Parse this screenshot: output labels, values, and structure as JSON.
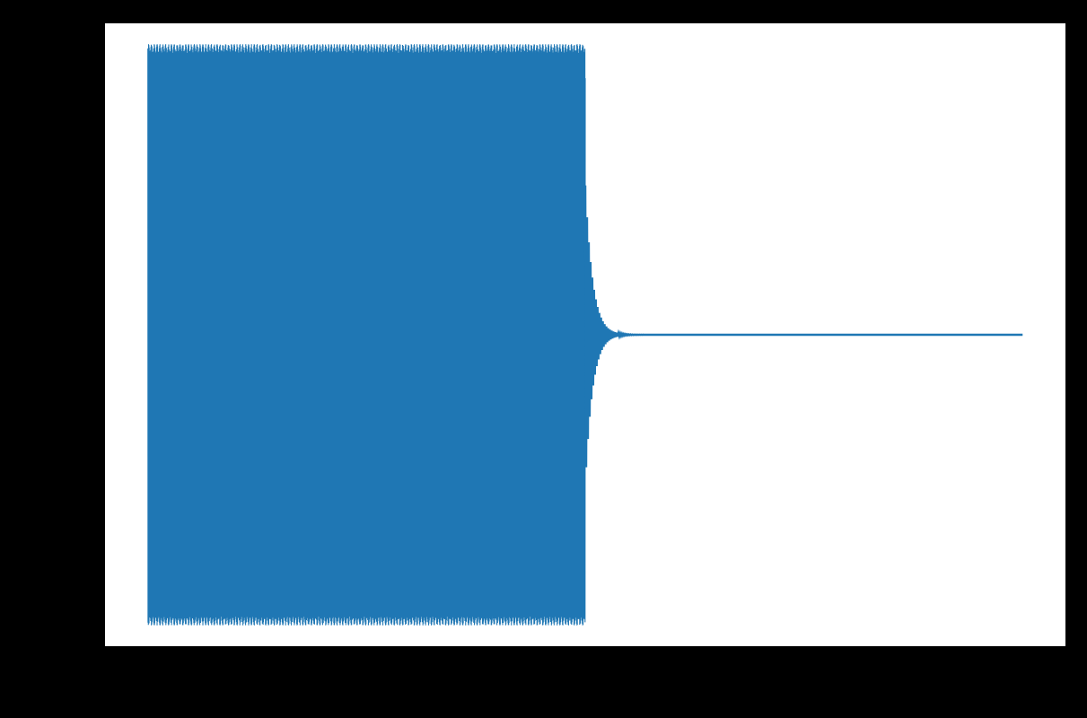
{
  "figure": {
    "background": "#000000",
    "axes_face": "#ffffff",
    "axes_edge": "#000000"
  },
  "chart_data": {
    "type": "line",
    "title": "",
    "xlabel": "",
    "ylabel": "",
    "grid": false,
    "legend": "none",
    "xlim": [
      -0.05,
      1.05
    ],
    "ylim": [
      -1.15,
      1.15
    ],
    "series": [
      {
        "color": "#1f77b4",
        "x": [
          0,
          0.5,
          0.51,
          1.0
        ],
        "envelope_upper": [
          1.07,
          1.07,
          0.0,
          0.0
        ],
        "envelope_lower": [
          -1.07,
          -1.07,
          0.0,
          0.0
        ],
        "description_values": {
          "segment_1": {
            "x": [
              0,
              0.5
            ],
            "amplitude": 1.07,
            "dip_amplitude": 0.95
          },
          "segment_2": {
            "x": [
              0.5,
              1.0
            ],
            "amplitude": 0.0
          }
        }
      }
    ]
  }
}
